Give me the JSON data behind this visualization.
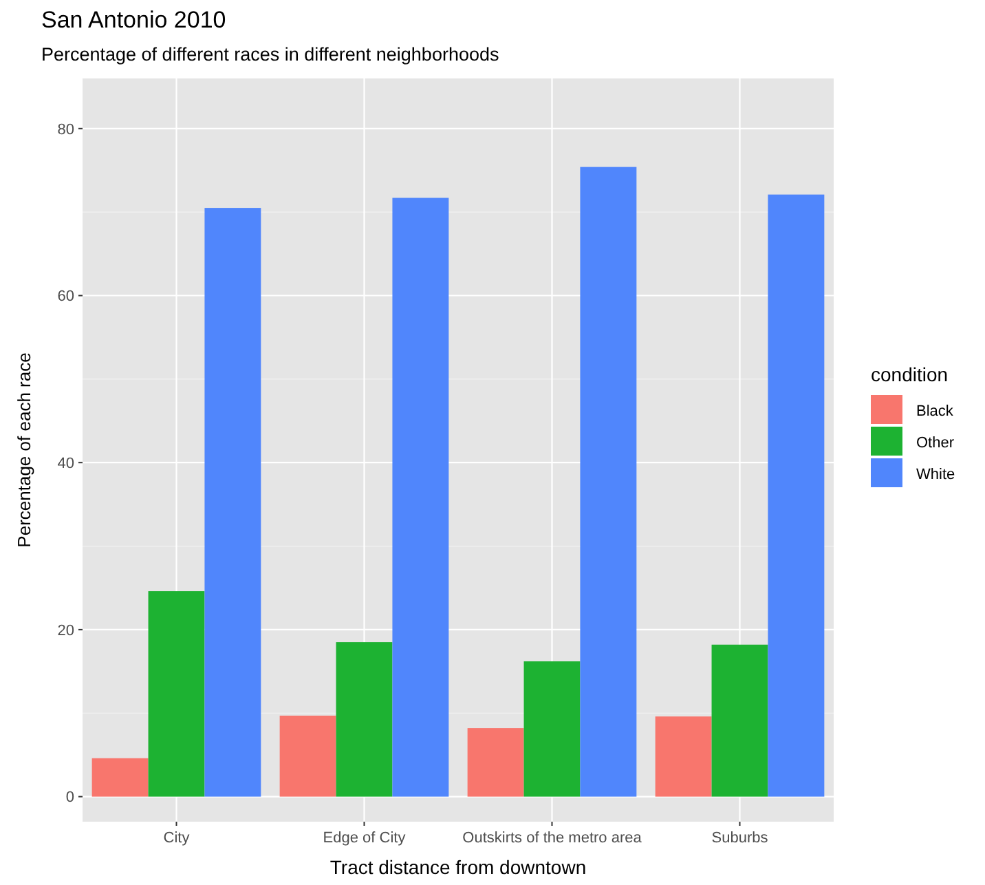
{
  "chart_data": {
    "type": "bar",
    "title": "San Antonio 2010",
    "subtitle": "Percentage of different races in different neighborhoods",
    "xlabel": "Tract distance from downtown",
    "ylabel": "Percentage of each race",
    "legend_title": "condition",
    "categories": [
      "City",
      "Edge of City",
      "Outskirts of the metro area",
      "Suburbs"
    ],
    "series": [
      {
        "name": "Black",
        "color": "#f8766d",
        "values": [
          4.6,
          9.7,
          8.2,
          9.6
        ]
      },
      {
        "name": "Other",
        "color": "#1db232",
        "values": [
          24.6,
          18.5,
          16.2,
          18.2
        ]
      },
      {
        "name": "White",
        "color": "#5086fc",
        "values": [
          70.5,
          71.7,
          75.4,
          72.1
        ]
      }
    ],
    "ylim": [
      -3,
      86
    ],
    "yticks": [
      0,
      20,
      40,
      60,
      80
    ],
    "grid": true,
    "legend": "right"
  }
}
